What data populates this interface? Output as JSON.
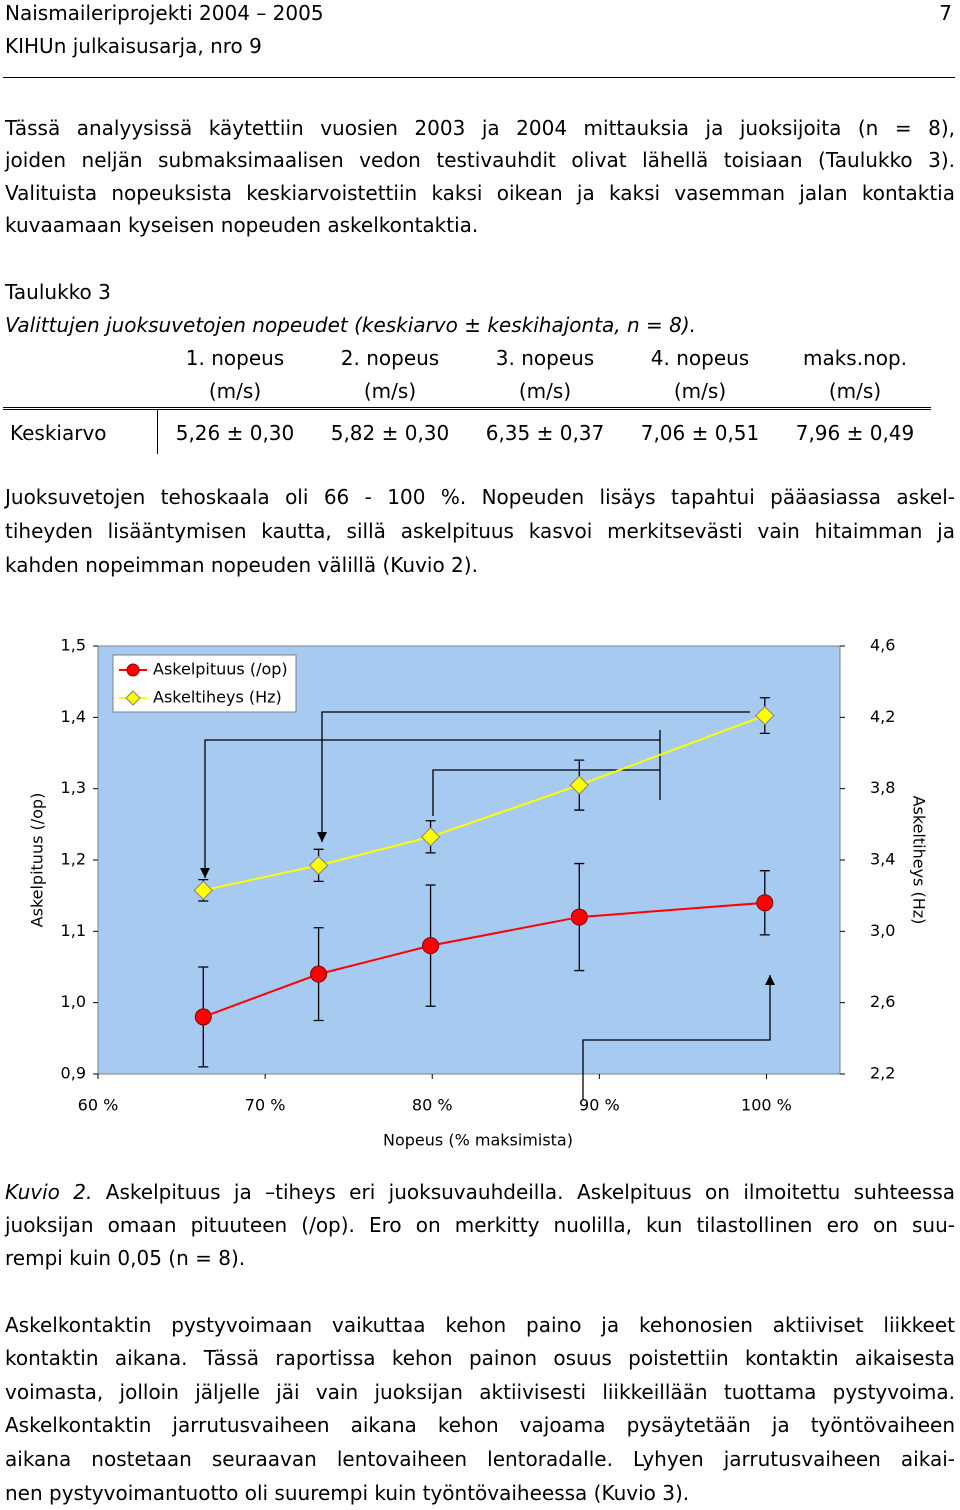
{
  "header": {
    "title": "Naismaileriprojekti 2004 – 2005",
    "page_number": "7",
    "series": "KIHUn julkaisusarja, nro 9"
  },
  "paragraphs": [
    {
      "lines": [
        "Tässä analyysissä käytettiin vuosien 2003 ja 2004 mittauksia ja juoksijoita (n = 8),",
        "joiden neljän submaksimaalisen vedon testivauhdit olivat lähellä toisiaan (Taulukko 3).",
        "Valituista nopeuksista keskiarvoistettiin kaksi oikean ja kaksi vasemman jalan kontaktia",
        "kuvaamaan kyseisen nopeuden askelkontaktia."
      ]
    },
    {
      "lines": [
        "Juoksuvetojen tehoskaala oli 66 - 100 %. Nopeuden lisäys tapahtui pääasiassa askel-",
        "tiheyden lisääntymisen kautta, sillä askelpituus kasvoi merkitsevästi vain hitaimman ja",
        "kahden nopeimman nopeuden välillä (Kuvio 2)."
      ]
    },
    {
      "lines": [
        "Askelkontaktin pystyvoimaan vaikuttaa kehon paino ja kehonosien aktiiviset liikkeet",
        "kontaktin aikana. Tässä raportissa kehon painon osuus poistettiin kontaktin aikaisesta",
        "voimasta, jolloin jäljelle jäi vain juoksijan aktiivisesti liikkeillään tuottama pystyvoima.",
        "Askelkontaktin jarrutusvaiheen aikana kehon vajoama pysäytetään ja työntövaiheen",
        "aikana nostetaan seuraavan lentovaiheen lentoradalle. Lyhyen jarrutusvaiheen aikai-",
        "nen pystyvoimantuotto oli suurempi kuin työntövaiheessa (Kuvio 3)."
      ]
    }
  ],
  "table": {
    "label": "Taulukko 3",
    "caption": "Valittujen juoksuvetojen nopeudet (keskiarvo ± keskihajonta, n = 8).",
    "columns": [
      {
        "name": "1. nopeus",
        "unit": "(m/s)"
      },
      {
        "name": "2. nopeus",
        "unit": "(m/s)"
      },
      {
        "name": "3. nopeus",
        "unit": "(m/s)"
      },
      {
        "name": "4. nopeus",
        "unit": "(m/s)"
      },
      {
        "name": "maks.nop.",
        "unit": "(m/s)"
      }
    ],
    "rows": [
      {
        "label": "Keskiarvo",
        "cells": [
          "5,26 ± 0,30",
          "5,82 ± 0,30",
          "6,35 ± 0,37",
          "7,06 ± 0,51",
          "7,96 ± 0,49"
        ]
      }
    ]
  },
  "chart_data": {
    "type": "line",
    "x_label": "Nopeus (% maksimista)",
    "y_label": "Askelpituus (/op)",
    "y2_label": "Askeltiheys (Hz)",
    "x": [
      66.3,
      73.2,
      79.9,
      88.8,
      99.9
    ],
    "xlim": [
      60,
      104.4
    ],
    "xticks": [
      {
        "value": 60,
        "label": "60 %"
      },
      {
        "value": 70,
        "label": "70 %"
      },
      {
        "value": 80,
        "label": "80 %"
      },
      {
        "value": 90,
        "label": "90 %"
      },
      {
        "value": 100,
        "label": "100 %"
      }
    ],
    "ylim": [
      0.9,
      1.5
    ],
    "yticks": [
      {
        "value": 0.9,
        "label": "0,9"
      },
      {
        "value": 1.0,
        "label": "1,0"
      },
      {
        "value": 1.1,
        "label": "1,1"
      },
      {
        "value": 1.2,
        "label": "1,2"
      },
      {
        "value": 1.3,
        "label": "1,3"
      },
      {
        "value": 1.4,
        "label": "1,4"
      },
      {
        "value": 1.5,
        "label": "1,5"
      }
    ],
    "y2lim": [
      2.2,
      4.6
    ],
    "y2ticks": [
      {
        "value": 2.2,
        "label": "2,2"
      },
      {
        "value": 2.6,
        "label": "2,6"
      },
      {
        "value": 3.0,
        "label": "3,0"
      },
      {
        "value": 3.4,
        "label": "3,4"
      },
      {
        "value": 3.8,
        "label": "3,8"
      },
      {
        "value": 4.2,
        "label": "4,2"
      },
      {
        "value": 4.6,
        "label": "4,6"
      }
    ],
    "series": [
      {
        "name": "Askelpituus (/op)",
        "color": "#ff0000",
        "marker": "circle",
        "values": [
          0.98,
          1.04,
          1.08,
          1.12,
          1.14
        ],
        "errors": [
          0.07,
          0.065,
          0.085,
          0.075,
          0.045
        ]
      },
      {
        "name": "Askeltiheys (Hz)",
        "color": "#ffff00",
        "marker": "diamond",
        "axis": "y2",
        "values": [
          3.23,
          3.37,
          3.53,
          3.82,
          4.21
        ],
        "errors": [
          0.06,
          0.09,
          0.09,
          0.14,
          0.1
        ]
      }
    ],
    "legend": "top-left",
    "background": "#a6caf0"
  },
  "figure_caption": {
    "label": "Kuvio 2.",
    "lines": [
      "Askelpituus ja –tiheys eri juoksuvauhdeilla. Askelpituus on ilmoitettu suhteessa",
      "juoksijan omaan pituuteen (/op). Ero on merkitty nuolilla, kun tilastollinen ero on suu-",
      "rempi kuin 0,05 (n = 8)."
    ]
  }
}
